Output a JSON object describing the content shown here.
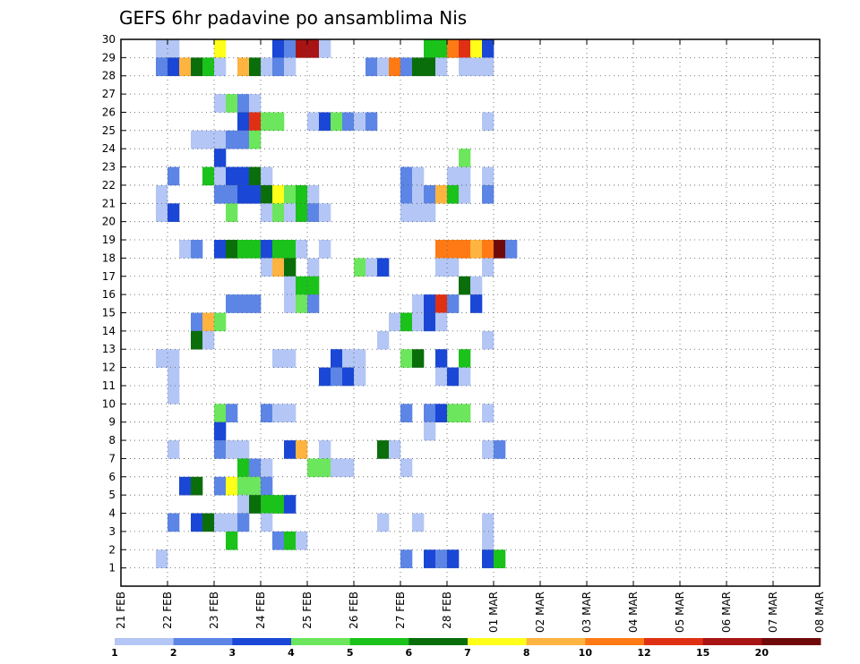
{
  "chart_data": {
    "type": "heatmap",
    "title": "GEFS 6hr padavine po ansamblima Nis",
    "xlabel": "",
    "ylabel": "",
    "y_range": [
      0,
      30
    ],
    "y_ticks": [
      "1",
      "2",
      "3",
      "4",
      "5",
      "6",
      "7",
      "8",
      "9",
      "10",
      "11",
      "12",
      "13",
      "14",
      "15",
      "16",
      "17",
      "18",
      "19",
      "20",
      "21",
      "22",
      "23",
      "24",
      "25",
      "26",
      "27",
      "28",
      "29",
      "30"
    ],
    "x_ticks": [
      "21 FEB",
      "22 FEB",
      "23 FEB",
      "24 FEB",
      "25 FEB",
      "26 FEB",
      "27 FEB",
      "28 FEB",
      "01 MAR",
      "02 MAR",
      "03 MAR",
      "04 MAR",
      "05 MAR",
      "06 MAR",
      "07 MAR",
      "08 MAR"
    ],
    "x_range_days": [
      0,
      15
    ],
    "slots_per_day": 4,
    "legend": {
      "boundaries": [
        "1",
        "2",
        "3",
        "4",
        "5",
        "6",
        "7",
        "8",
        "10",
        "12",
        "15",
        "20"
      ],
      "colors": [
        "#b3c6f5",
        "#5c85e6",
        "#1a47d6",
        "#6ce65c",
        "#1ac21a",
        "#0a6e0a",
        "#ffff1a",
        "#ffb340",
        "#ff7a14",
        "#e03014",
        "#a81414",
        "#700a0a"
      ]
    },
    "cells": [
      [
        30,
        3,
        0
      ],
      [
        30,
        4,
        0
      ],
      [
        30,
        8,
        6
      ],
      [
        30,
        13,
        2
      ],
      [
        30,
        14,
        1
      ],
      [
        30,
        15,
        10
      ],
      [
        30,
        16,
        10
      ],
      [
        30,
        17,
        0
      ],
      [
        30,
        26,
        4
      ],
      [
        30,
        27,
        4
      ],
      [
        30,
        28,
        8
      ],
      [
        30,
        29,
        9
      ],
      [
        30,
        30,
        6
      ],
      [
        30,
        31,
        2
      ],
      [
        29,
        3,
        1
      ],
      [
        29,
        4,
        2
      ],
      [
        29,
        5,
        7
      ],
      [
        29,
        6,
        5
      ],
      [
        29,
        7,
        4
      ],
      [
        29,
        8,
        0
      ],
      [
        29,
        10,
        7
      ],
      [
        29,
        11,
        5
      ],
      [
        29,
        12,
        0
      ],
      [
        29,
        13,
        1
      ],
      [
        29,
        14,
        0
      ],
      [
        29,
        21,
        1
      ],
      [
        29,
        22,
        0
      ],
      [
        29,
        23,
        8
      ],
      [
        29,
        24,
        1
      ],
      [
        29,
        25,
        5
      ],
      [
        29,
        26,
        5
      ],
      [
        29,
        27,
        0
      ],
      [
        29,
        29,
        0
      ],
      [
        29,
        30,
        0
      ],
      [
        29,
        31,
        0
      ],
      [
        27,
        8,
        0
      ],
      [
        27,
        9,
        3
      ],
      [
        27,
        10,
        1
      ],
      [
        27,
        11,
        0
      ],
      [
        26,
        10,
        2
      ],
      [
        26,
        11,
        9
      ],
      [
        26,
        12,
        3
      ],
      [
        26,
        13,
        3
      ],
      [
        26,
        16,
        0
      ],
      [
        26,
        17,
        2
      ],
      [
        26,
        18,
        3
      ],
      [
        26,
        19,
        1
      ],
      [
        26,
        20,
        0
      ],
      [
        26,
        21,
        1
      ],
      [
        26,
        31,
        0
      ],
      [
        25,
        6,
        0
      ],
      [
        25,
        7,
        0
      ],
      [
        25,
        8,
        0
      ],
      [
        25,
        9,
        1
      ],
      [
        25,
        10,
        1
      ],
      [
        25,
        11,
        3
      ],
      [
        24,
        8,
        2
      ],
      [
        24,
        29,
        3
      ],
      [
        23,
        4,
        1
      ],
      [
        23,
        7,
        4
      ],
      [
        23,
        8,
        0
      ],
      [
        23,
        9,
        2
      ],
      [
        23,
        10,
        2
      ],
      [
        23,
        11,
        5
      ],
      [
        23,
        12,
        0
      ],
      [
        23,
        24,
        1
      ],
      [
        23,
        25,
        0
      ],
      [
        23,
        28,
        0
      ],
      [
        23,
        29,
        0
      ],
      [
        23,
        31,
        0
      ],
      [
        22,
        3,
        0
      ],
      [
        22,
        8,
        1
      ],
      [
        22,
        9,
        1
      ],
      [
        22,
        10,
        2
      ],
      [
        22,
        11,
        2
      ],
      [
        22,
        12,
        5
      ],
      [
        22,
        13,
        6
      ],
      [
        22,
        14,
        3
      ],
      [
        22,
        15,
        4
      ],
      [
        22,
        16,
        0
      ],
      [
        22,
        24,
        1
      ],
      [
        22,
        25,
        0
      ],
      [
        22,
        26,
        1
      ],
      [
        22,
        27,
        7
      ],
      [
        22,
        28,
        4
      ],
      [
        22,
        29,
        0
      ],
      [
        22,
        31,
        1
      ],
      [
        21,
        3,
        0
      ],
      [
        21,
        4,
        2
      ],
      [
        21,
        9,
        3
      ],
      [
        21,
        12,
        0
      ],
      [
        21,
        13,
        3
      ],
      [
        21,
        14,
        0
      ],
      [
        21,
        15,
        4
      ],
      [
        21,
        16,
        1
      ],
      [
        21,
        17,
        0
      ],
      [
        21,
        24,
        0
      ],
      [
        21,
        25,
        0
      ],
      [
        21,
        26,
        0
      ],
      [
        19,
        5,
        0
      ],
      [
        19,
        6,
        1
      ],
      [
        19,
        8,
        2
      ],
      [
        19,
        9,
        5
      ],
      [
        19,
        10,
        4
      ],
      [
        19,
        11,
        4
      ],
      [
        19,
        12,
        2
      ],
      [
        19,
        13,
        4
      ],
      [
        19,
        14,
        4
      ],
      [
        19,
        15,
        0
      ],
      [
        19,
        17,
        0
      ],
      [
        19,
        27,
        8
      ],
      [
        19,
        28,
        8
      ],
      [
        19,
        29,
        8
      ],
      [
        19,
        30,
        7
      ],
      [
        19,
        31,
        8
      ],
      [
        19,
        32,
        11
      ],
      [
        19,
        33,
        1
      ],
      [
        18,
        12,
        0
      ],
      [
        18,
        13,
        7
      ],
      [
        18,
        14,
        5
      ],
      [
        18,
        16,
        0
      ],
      [
        18,
        20,
        3
      ],
      [
        18,
        21,
        0
      ],
      [
        18,
        22,
        2
      ],
      [
        18,
        27,
        0
      ],
      [
        18,
        28,
        0
      ],
      [
        18,
        31,
        0
      ],
      [
        17,
        14,
        0
      ],
      [
        17,
        15,
        4
      ],
      [
        17,
        16,
        4
      ],
      [
        17,
        29,
        5
      ],
      [
        17,
        30,
        0
      ],
      [
        16,
        9,
        1
      ],
      [
        16,
        10,
        1
      ],
      [
        16,
        11,
        1
      ],
      [
        16,
        14,
        0
      ],
      [
        16,
        15,
        3
      ],
      [
        16,
        16,
        1
      ],
      [
        16,
        25,
        0
      ],
      [
        16,
        26,
        2
      ],
      [
        16,
        27,
        9
      ],
      [
        16,
        28,
        1
      ],
      [
        16,
        30,
        2
      ],
      [
        15,
        6,
        1
      ],
      [
        15,
        7,
        7
      ],
      [
        15,
        8,
        3
      ],
      [
        15,
        23,
        0
      ],
      [
        15,
        24,
        4
      ],
      [
        15,
        25,
        0
      ],
      [
        15,
        26,
        2
      ],
      [
        15,
        27,
        0
      ],
      [
        14,
        6,
        5
      ],
      [
        14,
        7,
        0
      ],
      [
        14,
        22,
        0
      ],
      [
        14,
        31,
        0
      ],
      [
        13,
        3,
        0
      ],
      [
        13,
        4,
        0
      ],
      [
        13,
        13,
        0
      ],
      [
        13,
        14,
        0
      ],
      [
        13,
        18,
        2
      ],
      [
        13,
        19,
        0
      ],
      [
        13,
        20,
        0
      ],
      [
        13,
        24,
        3
      ],
      [
        13,
        25,
        5
      ],
      [
        13,
        27,
        2
      ],
      [
        13,
        29,
        4
      ],
      [
        12,
        4,
        0
      ],
      [
        12,
        17,
        2
      ],
      [
        12,
        18,
        1
      ],
      [
        12,
        19,
        2
      ],
      [
        12,
        20,
        0
      ],
      [
        12,
        27,
        0
      ],
      [
        12,
        28,
        2
      ],
      [
        12,
        29,
        0
      ],
      [
        11,
        4,
        0
      ],
      [
        10,
        8,
        3
      ],
      [
        10,
        9,
        1
      ],
      [
        10,
        12,
        1
      ],
      [
        10,
        13,
        0
      ],
      [
        10,
        14,
        0
      ],
      [
        10,
        24,
        1
      ],
      [
        10,
        26,
        1
      ],
      [
        10,
        27,
        2
      ],
      [
        10,
        28,
        3
      ],
      [
        10,
        29,
        3
      ],
      [
        10,
        31,
        0
      ],
      [
        9,
        8,
        2
      ],
      [
        9,
        26,
        0
      ],
      [
        8,
        4,
        0
      ],
      [
        8,
        8,
        1
      ],
      [
        8,
        9,
        0
      ],
      [
        8,
        10,
        0
      ],
      [
        8,
        14,
        2
      ],
      [
        8,
        15,
        7
      ],
      [
        8,
        17,
        0
      ],
      [
        8,
        22,
        5
      ],
      [
        8,
        23,
        0
      ],
      [
        8,
        31,
        0
      ],
      [
        8,
        32,
        1
      ],
      [
        7,
        10,
        4
      ],
      [
        7,
        11,
        1
      ],
      [
        7,
        12,
        0
      ],
      [
        7,
        16,
        3
      ],
      [
        7,
        17,
        3
      ],
      [
        7,
        18,
        0
      ],
      [
        7,
        19,
        0
      ],
      [
        7,
        24,
        0
      ],
      [
        6,
        5,
        2
      ],
      [
        6,
        6,
        5
      ],
      [
        6,
        8,
        1
      ],
      [
        6,
        9,
        6
      ],
      [
        6,
        10,
        3
      ],
      [
        6,
        11,
        3
      ],
      [
        6,
        12,
        1
      ],
      [
        5,
        10,
        0
      ],
      [
        5,
        11,
        5
      ],
      [
        5,
        12,
        4
      ],
      [
        5,
        13,
        4
      ],
      [
        5,
        14,
        2
      ],
      [
        4,
        4,
        1
      ],
      [
        4,
        6,
        2
      ],
      [
        4,
        7,
        5
      ],
      [
        4,
        8,
        0
      ],
      [
        4,
        9,
        0
      ],
      [
        4,
        10,
        1
      ],
      [
        4,
        12,
        0
      ],
      [
        4,
        22,
        0
      ],
      [
        4,
        25,
        0
      ],
      [
        4,
        31,
        0
      ],
      [
        3,
        9,
        4
      ],
      [
        3,
        13,
        1
      ],
      [
        3,
        14,
        4
      ],
      [
        3,
        15,
        0
      ],
      [
        3,
        31,
        0
      ],
      [
        2,
        3,
        0
      ],
      [
        2,
        24,
        1
      ],
      [
        2,
        26,
        2
      ],
      [
        2,
        27,
        1
      ],
      [
        2,
        28,
        2
      ],
      [
        2,
        31,
        2
      ],
      [
        2,
        32,
        4
      ]
    ]
  }
}
